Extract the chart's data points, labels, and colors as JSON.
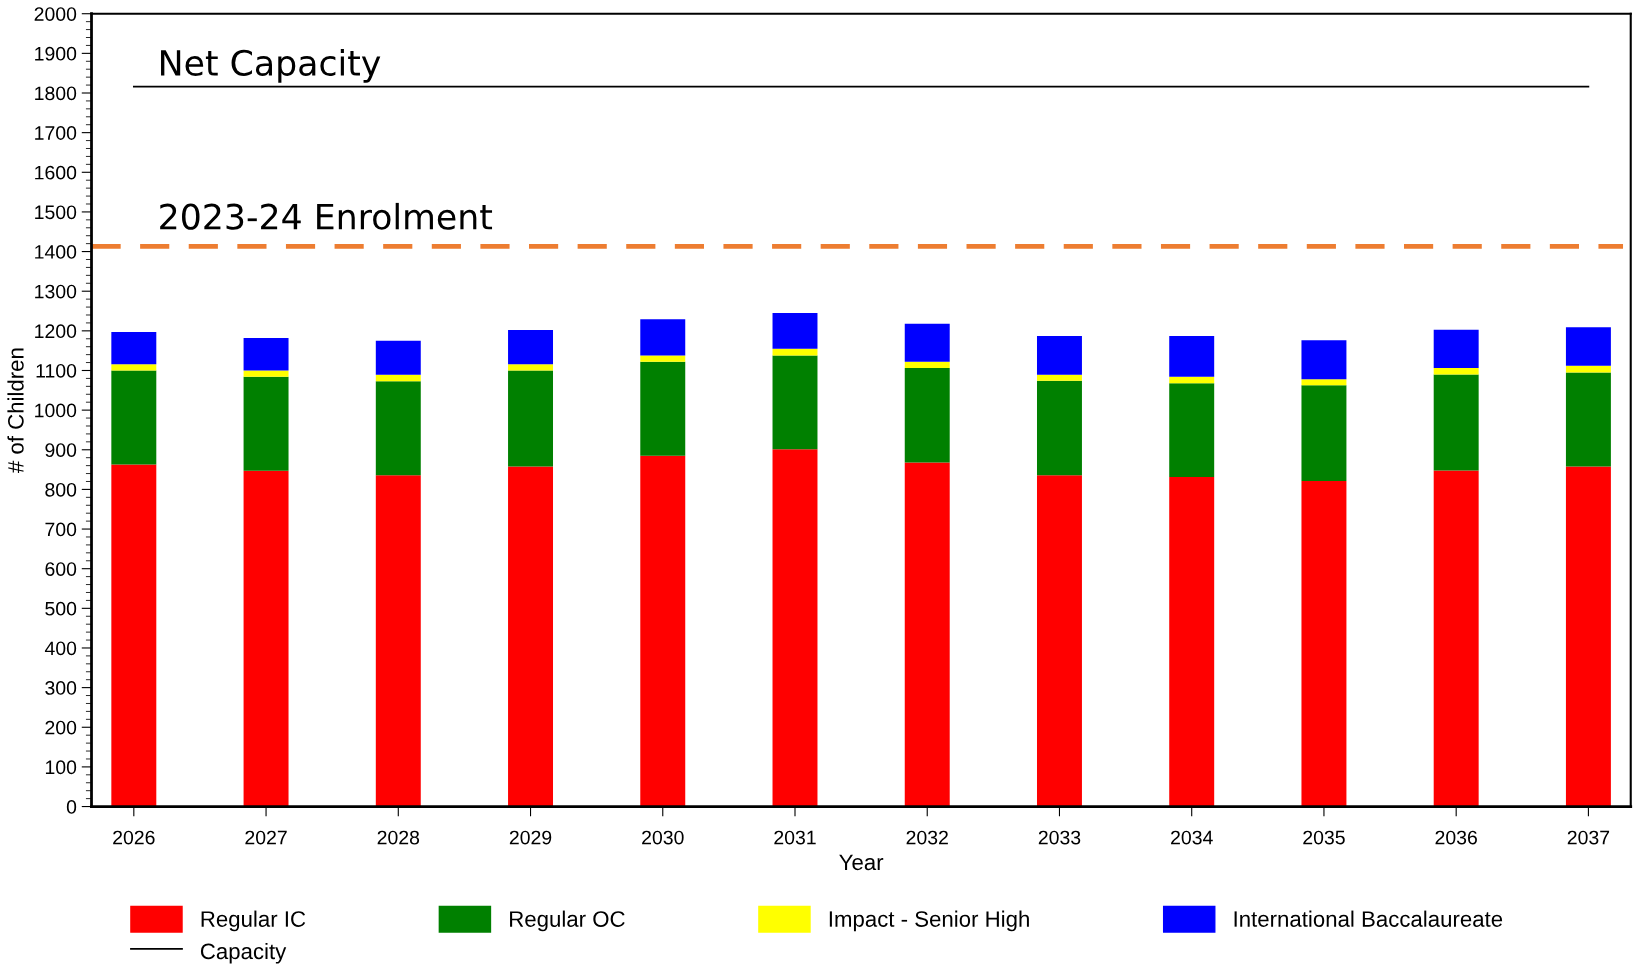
{
  "chart_data": {
    "type": "bar",
    "stacked": true,
    "xlabel": "Year",
    "ylabel": "# of Children",
    "categories": [
      "2026",
      "2027",
      "2028",
      "2029",
      "2030",
      "2031",
      "2032",
      "2033",
      "2034",
      "2035",
      "2036",
      "2037"
    ],
    "series": [
      {
        "name": "Regular IC",
        "color": "#ff0000",
        "values": [
          863,
          847,
          836,
          858,
          885,
          901,
          868,
          836,
          831,
          821,
          848,
          858
        ]
      },
      {
        "name": "Regular OC",
        "color": "#008000",
        "values": [
          237,
          237,
          237,
          242,
          237,
          237,
          238,
          238,
          237,
          242,
          242,
          237
        ]
      },
      {
        "name": "Impact - Senior High",
        "color": "#ffff00",
        "values": [
          16,
          16,
          16,
          16,
          16,
          17,
          16,
          15,
          16,
          15,
          16,
          17
        ]
      },
      {
        "name": "International Baccalaureate",
        "color": "#0000ff",
        "values": [
          81,
          82,
          86,
          86,
          91,
          90,
          96,
          98,
          103,
          98,
          97,
          97
        ]
      },
      {
        "name": "Capacity",
        "type": "line",
        "color": "#000000",
        "line_style": "solid",
        "values": [
          1816,
          1816,
          1816,
          1816,
          1816,
          1816,
          1816,
          1816,
          1816,
          1816,
          1816,
          1816
        ]
      }
    ],
    "ref_lines": [
      {
        "axis": "y",
        "value": 1413,
        "label": "2023-24 Enrolment",
        "color": "#ed7d31",
        "line_style": "dashed"
      }
    ],
    "annotations": [
      {
        "text": "Net Capacity",
        "x": "2026",
        "y": 1816
      }
    ],
    "ylim": [
      0,
      2000
    ],
    "yticks": [
      0,
      100,
      200,
      300,
      400,
      500,
      600,
      700,
      800,
      900,
      1000,
      1100,
      1200,
      1300,
      1400,
      1500,
      1600,
      1700,
      1800,
      1900,
      2000
    ],
    "grid": false,
    "legend": "bottom",
    "marker": "none"
  }
}
